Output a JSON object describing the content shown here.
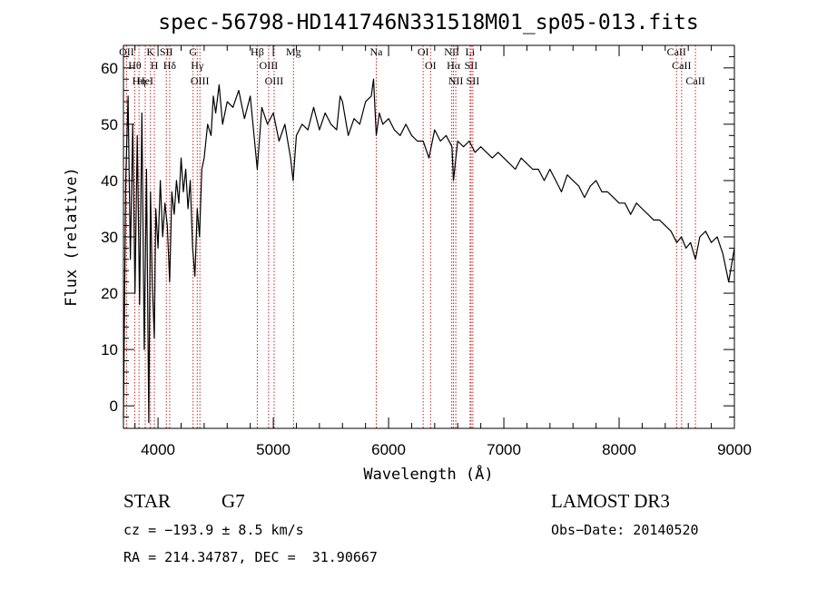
{
  "chart_data": {
    "type": "line",
    "title": "spec-56798-HD141746N331518M01_sp05-013.fits",
    "xlabel": "Wavelength (Å)",
    "ylabel": "Flux (relative)",
    "xlim": [
      3700,
      9000
    ],
    "ylim": [
      -4,
      64
    ],
    "x_ticks": [
      4000,
      5000,
      6000,
      7000,
      8000,
      9000
    ],
    "y_ticks": [
      0,
      10,
      20,
      30,
      40,
      50,
      60
    ],
    "grid": false,
    "series": [
      {
        "name": "flux",
        "x": [
          3700,
          3720,
          3740,
          3760,
          3780,
          3800,
          3820,
          3840,
          3860,
          3880,
          3900,
          3920,
          3935,
          3950,
          3968,
          3980,
          4000,
          4020,
          4040,
          4060,
          4080,
          4101,
          4120,
          4140,
          4160,
          4180,
          4200,
          4220,
          4240,
          4260,
          4280,
          4300,
          4320,
          4340,
          4360,
          4380,
          4400,
          4430,
          4460,
          4480,
          4500,
          4530,
          4560,
          4600,
          4650,
          4700,
          4750,
          4800,
          4861,
          4900,
          4950,
          5000,
          5050,
          5100,
          5150,
          5172,
          5200,
          5250,
          5300,
          5350,
          5400,
          5450,
          5500,
          5550,
          5580,
          5600,
          5650,
          5700,
          5750,
          5800,
          5850,
          5870,
          5893,
          5920,
          5950,
          6000,
          6050,
          6100,
          6150,
          6200,
          6250,
          6300,
          6350,
          6400,
          6450,
          6500,
          6550,
          6563,
          6600,
          6650,
          6700,
          6750,
          6800,
          6850,
          6900,
          6950,
          7000,
          7050,
          7100,
          7150,
          7200,
          7250,
          7300,
          7350,
          7400,
          7450,
          7500,
          7550,
          7600,
          7650,
          7700,
          7750,
          7800,
          7850,
          7900,
          7950,
          8000,
          8050,
          8100,
          8150,
          8200,
          8250,
          8300,
          8350,
          8400,
          8450,
          8500,
          8540,
          8580,
          8620,
          8662,
          8700,
          8750,
          8800,
          8850,
          8900,
          8950,
          9000
        ],
        "y": [
          -2,
          40,
          55,
          26,
          50,
          20,
          48,
          18,
          52,
          10,
          42,
          -3,
          38,
          22,
          12,
          35,
          28,
          40,
          30,
          36,
          32,
          22,
          38,
          34,
          40,
          36,
          44,
          38,
          42,
          35,
          40,
          28,
          23,
          35,
          30,
          42,
          44,
          50,
          48,
          55,
          52,
          57,
          50,
          54,
          53,
          56,
          51,
          55,
          42,
          53,
          50,
          52,
          47,
          50,
          44,
          40,
          48,
          50,
          49,
          53,
          49,
          52,
          50,
          49,
          55,
          54,
          48,
          51,
          50,
          54,
          55,
          58,
          48,
          52,
          50,
          51,
          49,
          48,
          50,
          48,
          47,
          47,
          44,
          49,
          47,
          48,
          46,
          40,
          47,
          46,
          47,
          45,
          46,
          45,
          44,
          45,
          44,
          43,
          42,
          44,
          43,
          42,
          42,
          40,
          42,
          40,
          38,
          41,
          40,
          39,
          37,
          39,
          40,
          38,
          38,
          37,
          36,
          36,
          34,
          36,
          35,
          34,
          33,
          33,
          32,
          31,
          29,
          30,
          28,
          29,
          26,
          30,
          31,
          29,
          30,
          27,
          22,
          28
        ]
      }
    ],
    "line_marks": [
      {
        "wl": 3727,
        "label": "OII"
      },
      {
        "wl": 3798,
        "label": "Hθ"
      },
      {
        "wl": 3835,
        "label": "Hη"
      },
      {
        "wl": 3889,
        "label": "HeI"
      },
      {
        "wl": 3934,
        "label": "K"
      },
      {
        "wl": 3968,
        "label": "H"
      },
      {
        "wl": 4072,
        "label": "SII"
      },
      {
        "wl": 4101,
        "label": "Hδ"
      },
      {
        "wl": 4304,
        "label": "G"
      },
      {
        "wl": 4340,
        "label": "Hγ"
      },
      {
        "wl": 4363,
        "label": "OIII"
      },
      {
        "wl": 4861,
        "label": "Hβ"
      },
      {
        "wl": 4959,
        "label": "OIII"
      },
      {
        "wl": 5007,
        "label": "OIII"
      },
      {
        "wl": 5175,
        "label": "Mg"
      },
      {
        "wl": 5893,
        "label": "Na"
      },
      {
        "wl": 6300,
        "label": "OI"
      },
      {
        "wl": 6364,
        "label": "OI"
      },
      {
        "wl": 6548,
        "label": "NII"
      },
      {
        "wl": 6563,
        "label": "Hα"
      },
      {
        "wl": 6583,
        "label": "NII"
      },
      {
        "wl": 6707,
        "label": "Li"
      },
      {
        "wl": 6716,
        "label": "SII"
      },
      {
        "wl": 6731,
        "label": "SII"
      },
      {
        "wl": 8498,
        "label": "CaII"
      },
      {
        "wl": 8542,
        "label": "CaII"
      },
      {
        "wl": 8662,
        "label": "CaII"
      }
    ]
  },
  "info": {
    "class_label": "STAR",
    "subclass": "G7",
    "survey": "LAMOST DR3",
    "cz_text": "cz = −193.9 ± 8.5 km/s",
    "obs_date": "Obs−Date: 20140520",
    "coords": "RA = 214.34787, DEC =  31.90667"
  },
  "colors": {
    "line_mark": "#cc2222",
    "spectrum": "#000000"
  }
}
